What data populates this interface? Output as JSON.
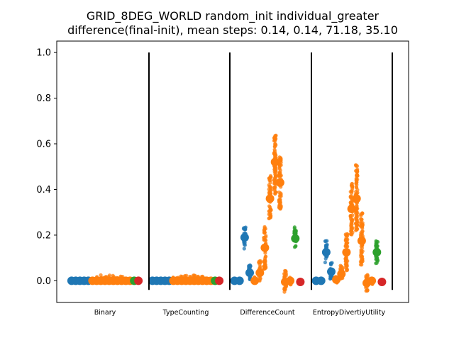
{
  "chart_data": {
    "type": "scatter",
    "title": "GRID_8DEG_WORLD random_init individual_greater",
    "subtitle": "difference(final-init), mean steps: 0.14, 0.14, 71.18, 35.10",
    "xlabel": "",
    "ylabel": "",
    "ylim": [
      -0.095,
      1.05
    ],
    "yticks": [
      "0.0",
      "0.2",
      "0.4",
      "0.6",
      "0.8",
      "1.0"
    ],
    "grid": false,
    "categories": [
      "Binary",
      "TypeCounting",
      "DifferenceCount",
      "EntropyDivertiyUtility"
    ],
    "colors": {
      "blue": "#1f77b4",
      "orange": "#ff7f0e",
      "green": "#2ca02c",
      "red": "#d62728",
      "separator": "#000000"
    },
    "group_means": [
      [
        {
          "color": "blue",
          "mean": 0.0,
          "spread": [
            -0.008,
            0.008
          ]
        },
        {
          "color": "blue",
          "mean": 0.0,
          "spread": [
            -0.008,
            0.008
          ]
        },
        {
          "color": "blue",
          "mean": 0.0,
          "spread": [
            -0.008,
            0.008
          ]
        },
        {
          "color": "blue",
          "mean": 0.0,
          "spread": [
            -0.008,
            0.008
          ]
        },
        {
          "color": "blue",
          "mean": 0.0,
          "spread": [
            -0.008,
            0.008
          ]
        },
        {
          "color": "orange",
          "mean": 0.0,
          "spread": [
            -0.01,
            0.015
          ]
        },
        {
          "color": "orange",
          "mean": 0.0,
          "spread": [
            -0.01,
            0.02
          ]
        },
        {
          "color": "orange",
          "mean": 0.0,
          "spread": [
            -0.01,
            0.025
          ]
        },
        {
          "color": "orange",
          "mean": 0.0,
          "spread": [
            -0.01,
            0.025
          ]
        },
        {
          "color": "orange",
          "mean": 0.0,
          "spread": [
            -0.01,
            0.025
          ]
        },
        {
          "color": "orange",
          "mean": 0.0,
          "spread": [
            -0.01,
            0.025
          ]
        },
        {
          "color": "orange",
          "mean": 0.0,
          "spread": [
            -0.01,
            0.02
          ]
        },
        {
          "color": "orange",
          "mean": 0.0,
          "spread": [
            -0.01,
            0.02
          ]
        },
        {
          "color": "orange",
          "mean": 0.0,
          "spread": [
            -0.01,
            0.015
          ]
        },
        {
          "color": "orange",
          "mean": 0.0,
          "spread": [
            -0.01,
            0.01
          ]
        },
        {
          "color": "green",
          "mean": 0.0,
          "spread": [
            -0.005,
            0.01
          ]
        },
        {
          "color": "red",
          "mean": 0.0,
          "spread": [
            -0.005,
            0.005
          ]
        }
      ],
      [
        {
          "color": "blue",
          "mean": 0.0,
          "spread": [
            -0.008,
            0.008
          ]
        },
        {
          "color": "blue",
          "mean": 0.0,
          "spread": [
            -0.008,
            0.008
          ]
        },
        {
          "color": "blue",
          "mean": 0.0,
          "spread": [
            -0.008,
            0.008
          ]
        },
        {
          "color": "blue",
          "mean": 0.0,
          "spread": [
            -0.008,
            0.008
          ]
        },
        {
          "color": "blue",
          "mean": 0.0,
          "spread": [
            -0.008,
            0.008
          ]
        },
        {
          "color": "orange",
          "mean": 0.0,
          "spread": [
            -0.01,
            0.015
          ]
        },
        {
          "color": "orange",
          "mean": 0.0,
          "spread": [
            -0.01,
            0.02
          ]
        },
        {
          "color": "orange",
          "mean": 0.0,
          "spread": [
            -0.01,
            0.025
          ]
        },
        {
          "color": "orange",
          "mean": 0.0,
          "spread": [
            -0.01,
            0.025
          ]
        },
        {
          "color": "orange",
          "mean": 0.0,
          "spread": [
            -0.01,
            0.025
          ]
        },
        {
          "color": "orange",
          "mean": 0.0,
          "spread": [
            -0.01,
            0.025
          ]
        },
        {
          "color": "orange",
          "mean": 0.0,
          "spread": [
            -0.01,
            0.02
          ]
        },
        {
          "color": "orange",
          "mean": 0.0,
          "spread": [
            -0.01,
            0.02
          ]
        },
        {
          "color": "orange",
          "mean": 0.0,
          "spread": [
            -0.01,
            0.015
          ]
        },
        {
          "color": "orange",
          "mean": 0.0,
          "spread": [
            -0.01,
            0.01
          ]
        },
        {
          "color": "green",
          "mean": 0.0,
          "spread": [
            -0.005,
            0.01
          ]
        },
        {
          "color": "red",
          "mean": 0.0,
          "spread": [
            -0.005,
            0.005
          ]
        }
      ],
      [
        {
          "color": "blue",
          "mean": 0.0,
          "spread": [
            -0.008,
            0.008
          ]
        },
        {
          "color": "blue",
          "mean": 0.0,
          "spread": [
            -0.008,
            0.008
          ]
        },
        {
          "color": "blue",
          "mean": 0.19,
          "spread": [
            0.14,
            0.235
          ]
        },
        {
          "color": "blue",
          "mean": 0.035,
          "spread": [
            0.0,
            0.07
          ]
        },
        {
          "color": "orange",
          "mean": 0.0,
          "spread": [
            -0.01,
            0.02
          ]
        },
        {
          "color": "orange",
          "mean": 0.035,
          "spread": [
            0.0,
            0.09
          ]
        },
        {
          "color": "orange",
          "mean": 0.145,
          "spread": [
            0.05,
            0.24
          ]
        },
        {
          "color": "orange",
          "mean": 0.36,
          "spread": [
            0.27,
            0.46
          ]
        },
        {
          "color": "orange",
          "mean": 0.52,
          "spread": [
            0.38,
            0.645
          ]
        },
        {
          "color": "orange",
          "mean": 0.43,
          "spread": [
            0.31,
            0.55
          ]
        },
        {
          "color": "orange",
          "mean": -0.005,
          "spread": [
            -0.05,
            0.045
          ]
        },
        {
          "color": "orange",
          "mean": 0.0,
          "spread": [
            -0.02,
            0.015
          ]
        },
        {
          "color": "green",
          "mean": 0.185,
          "spread": [
            0.14,
            0.235
          ]
        },
        {
          "color": "red",
          "mean": -0.005,
          "spread": [
            -0.01,
            0.0
          ]
        }
      ],
      [
        {
          "color": "blue",
          "mean": 0.0,
          "spread": [
            -0.008,
            0.008
          ]
        },
        {
          "color": "blue",
          "mean": 0.0,
          "spread": [
            -0.008,
            0.008
          ]
        },
        {
          "color": "blue",
          "mean": 0.125,
          "spread": [
            0.08,
            0.175
          ]
        },
        {
          "color": "blue",
          "mean": 0.04,
          "spread": [
            0.0,
            0.08
          ]
        },
        {
          "color": "orange",
          "mean": 0.005,
          "spread": [
            -0.01,
            0.02
          ]
        },
        {
          "color": "orange",
          "mean": 0.03,
          "spread": [
            0.0,
            0.07
          ]
        },
        {
          "color": "orange",
          "mean": 0.125,
          "spread": [
            0.04,
            0.21
          ]
        },
        {
          "color": "orange",
          "mean": 0.315,
          "spread": [
            0.2,
            0.43
          ]
        },
        {
          "color": "orange",
          "mean": 0.36,
          "spread": [
            0.22,
            0.51
          ]
        },
        {
          "color": "orange",
          "mean": 0.175,
          "spread": [
            0.07,
            0.3
          ]
        },
        {
          "color": "orange",
          "mean": -0.01,
          "spread": [
            -0.05,
            0.03
          ]
        },
        {
          "color": "orange",
          "mean": 0.0,
          "spread": [
            -0.015,
            0.01
          ]
        },
        {
          "color": "green",
          "mean": 0.125,
          "spread": [
            0.07,
            0.175
          ]
        },
        {
          "color": "red",
          "mean": -0.005,
          "spread": [
            -0.01,
            0.0
          ]
        }
      ]
    ]
  }
}
